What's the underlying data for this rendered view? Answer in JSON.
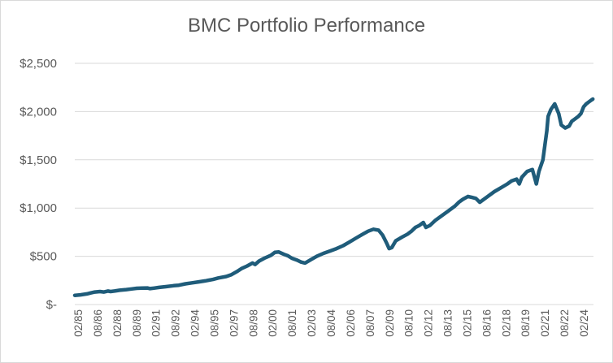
{
  "chart_data": {
    "type": "line",
    "title": "BMC Portfolio Performance",
    "xlabel": "",
    "ylabel": "",
    "ylim": [
      0,
      2500
    ],
    "yticks": [
      {
        "value": 0,
        "label": "$-"
      },
      {
        "value": 500,
        "label": "$500"
      },
      {
        "value": 1000,
        "label": "$1,000"
      },
      {
        "value": 1500,
        "label": "$1,500"
      },
      {
        "value": 2000,
        "label": "$2,000"
      },
      {
        "value": 2500,
        "label": "$2,500"
      }
    ],
    "xticks": [
      "02/85",
      "08/86",
      "02/88",
      "08/89",
      "02/91",
      "08/92",
      "02/94",
      "08/95",
      "02/97",
      "08/98",
      "02/00",
      "08/01",
      "02/03",
      "08/04",
      "02/06",
      "08/07",
      "02/09",
      "08/10",
      "02/12",
      "08/13",
      "02/15",
      "08/16",
      "02/18",
      "08/19",
      "02/21",
      "08/22",
      "02/24"
    ],
    "grid": "horizontal",
    "legend": "none",
    "series_color": "#1f5c7a",
    "gridline_color": "#d9d9d9",
    "series": [
      {
        "name": "",
        "x": [
          1985.08,
          1985.5,
          1986.0,
          1986.3,
          1986.6,
          1987.0,
          1987.3,
          1987.6,
          1987.8,
          1988.1,
          1988.5,
          1989.0,
          1989.4,
          1989.8,
          1990.2,
          1990.6,
          1990.8,
          1991.1,
          1991.5,
          1992.0,
          1992.6,
          1993.0,
          1993.5,
          1994.0,
          1994.5,
          1995.0,
          1995.6,
          1996.0,
          1996.6,
          1997.0,
          1997.4,
          1997.8,
          1998.2,
          1998.6,
          1998.8,
          1999.1,
          1999.5,
          2000.0,
          2000.3,
          2000.6,
          2001.0,
          2001.3,
          2001.6,
          2002.0,
          2002.3,
          2002.6,
          2002.8,
          2003.1,
          2003.5,
          2004.0,
          2004.5,
          2005.0,
          2005.5,
          2006.0,
          2006.5,
          2007.0,
          2007.4,
          2007.8,
          2008.2,
          2008.5,
          2008.8,
          2009.0,
          2009.2,
          2009.5,
          2010.0,
          2010.4,
          2010.7,
          2011.0,
          2011.3,
          2011.6,
          2011.8,
          2012.1,
          2012.5,
          2013.0,
          2013.5,
          2014.0,
          2014.3,
          2014.6,
          2015.0,
          2015.3,
          2015.6,
          2015.9,
          2016.1,
          2016.5,
          2017.0,
          2017.5,
          2018.0,
          2018.3,
          2018.7,
          2018.9,
          2019.1,
          2019.5,
          2019.9,
          2020.1,
          2020.2,
          2020.4,
          2020.7,
          2020.9,
          2021.0,
          2021.1,
          2021.3,
          2021.6,
          2021.9,
          2022.1,
          2022.4,
          2022.7,
          2022.9,
          2023.1,
          2023.4,
          2023.6,
          2023.8,
          2024.0,
          2024.2,
          2024.4,
          2024.5
        ],
        "values": [
          95,
          100,
          110,
          120,
          130,
          135,
          130,
          140,
          135,
          140,
          148,
          155,
          162,
          168,
          170,
          172,
          165,
          170,
          178,
          185,
          195,
          200,
          215,
          225,
          235,
          245,
          260,
          275,
          290,
          310,
          340,
          375,
          400,
          430,
          415,
          450,
          480,
          510,
          540,
          545,
          520,
          505,
          480,
          460,
          440,
          430,
          445,
          470,
          500,
          530,
          555,
          580,
          610,
          650,
          690,
          730,
          760,
          780,
          770,
          720,
          640,
          580,
          590,
          660,
          700,
          730,
          760,
          800,
          820,
          850,
          800,
          820,
          870,
          920,
          970,
          1020,
          1060,
          1090,
          1120,
          1110,
          1100,
          1060,
          1080,
          1120,
          1170,
          1210,
          1250,
          1280,
          1300,
          1250,
          1320,
          1380,
          1400,
          1300,
          1250,
          1380,
          1500,
          1700,
          1800,
          1950,
          2020,
          2080,
          1980,
          1860,
          1830,
          1850,
          1900,
          1920,
          1950,
          1980,
          2050,
          2080,
          2100,
          2120,
          2130
        ]
      }
    ]
  }
}
